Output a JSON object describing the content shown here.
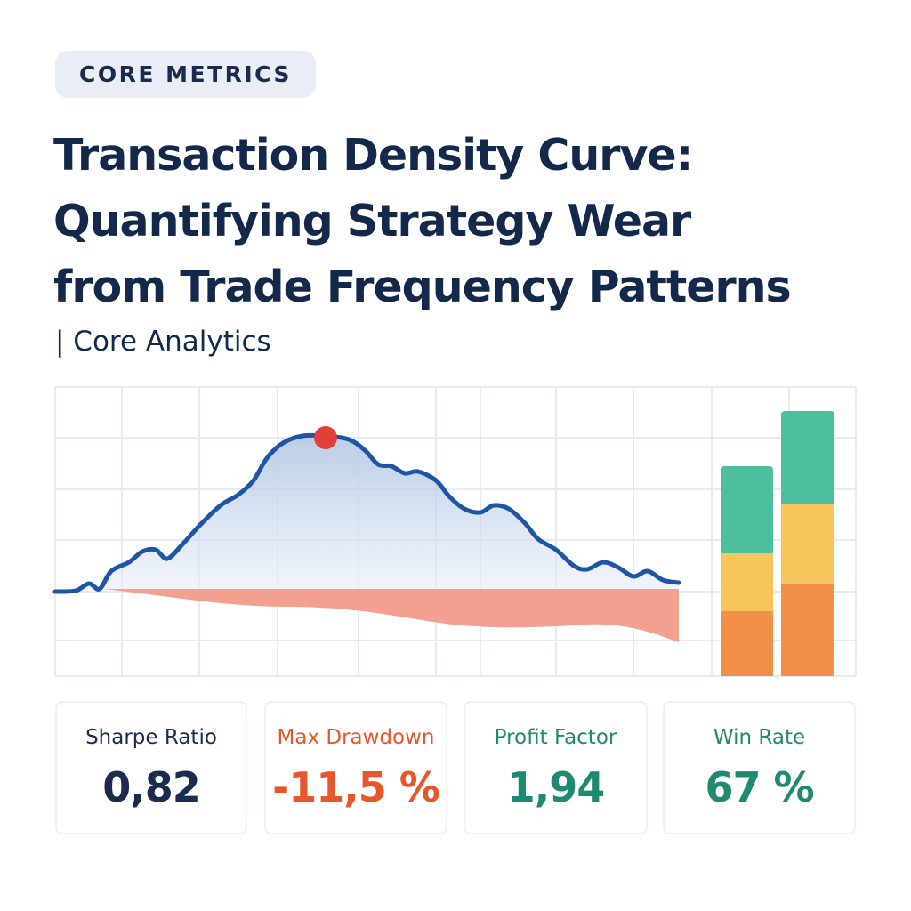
{
  "badge": "CORE METRICS",
  "title_lines": [
    "Transaction Density Curve:",
    "Quantifying Strategy Wear",
    "from Trade Frequency Patterns"
  ],
  "subtitle": "| Core Analytics",
  "metrics": [
    {
      "label": "Sharpe Ratio",
      "value": "0,82"
    },
    {
      "label": "Max Drawdown",
      "value": "-11,5 %"
    },
    {
      "label": "Profit Factor",
      "value": "1,94"
    },
    {
      "label": "Win Rate",
      "value": "67 %"
    }
  ]
}
